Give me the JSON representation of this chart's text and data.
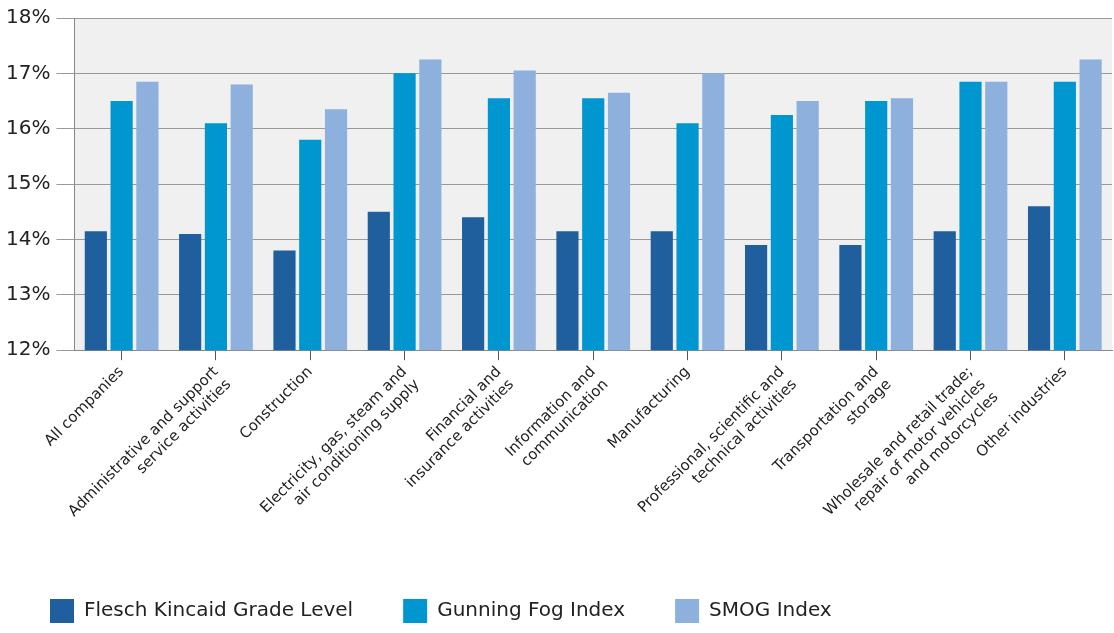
{
  "chart_data": {
    "type": "bar",
    "categories": [
      "All companies",
      "Administrative and support\nservice activities",
      "Construction",
      "Electricity, gas, steam and\nair conditioning supply",
      "Financial and\ninsurance activities",
      "Information and\ncommunication",
      "Manufacturing",
      "Professional, scientific and\ntechnical activities",
      "Transportation and\nstorage",
      "Wholesale and retail trade;\nrepair of motor vehicles\nand motorcycles",
      "Other industries"
    ],
    "series": [
      {
        "name": "Flesch Kincaid Grade Level",
        "color": "#1f5f9e",
        "values": [
          14.15,
          14.1,
          13.8,
          14.5,
          14.4,
          14.15,
          14.15,
          13.9,
          13.9,
          14.15,
          14.6
        ]
      },
      {
        "name": "Gunning Fog Index",
        "color": "#0096cf",
        "values": [
          16.5,
          16.1,
          15.8,
          17.0,
          16.55,
          16.55,
          16.1,
          16.25,
          16.5,
          16.85,
          16.85
        ]
      },
      {
        "name": "SMOG Index",
        "color": "#8db0dc",
        "values": [
          16.85,
          16.8,
          16.35,
          17.25,
          17.05,
          16.65,
          17.0,
          16.5,
          16.55,
          16.85,
          17.25
        ]
      }
    ],
    "ylim": [
      12,
      18
    ],
    "yticks": [
      {
        "value": 12,
        "label": "12%"
      },
      {
        "value": 13,
        "label": "13%"
      },
      {
        "value": 14,
        "label": "14%"
      },
      {
        "value": 15,
        "label": "15%"
      },
      {
        "value": 16,
        "label": "16%"
      },
      {
        "value": 17,
        "label": "17%"
      },
      {
        "value": 18,
        "label": "18%"
      }
    ],
    "grid": "y",
    "legend": "bottom left"
  }
}
